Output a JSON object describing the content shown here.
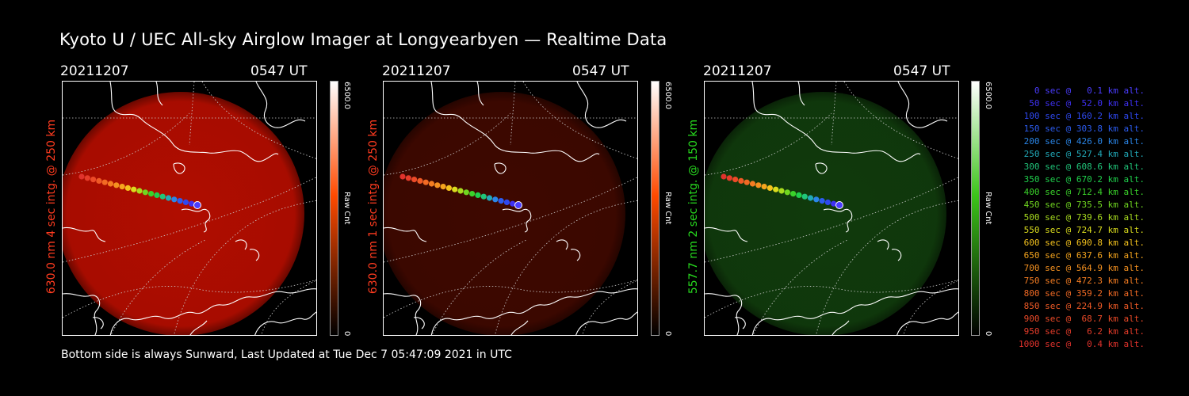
{
  "title": "Kyoto U / UEC All-sky Airglow Imager at Longyearbyen — Realtime Data",
  "footer": "Bottom side is always Sunward, Last Updated at Tue Dec  7 05:47:09 2021 in UTC",
  "panels": [
    {
      "date": "20211207",
      "time": "0547 UT",
      "ylabel": "630.0 nm 4 sec intg. @ 250 km",
      "label_color": "#ff3b1f",
      "cbar_max": "6500.0",
      "cbar_min": "0",
      "cbar_unit": "Raw Cnt",
      "glow_color": "#b00d00",
      "cbar_color": "#ff4a00"
    },
    {
      "date": "20211207",
      "time": "0547 UT",
      "ylabel": "630.0 nm 1 sec intg. @ 250 km",
      "label_color": "#ff3b1f",
      "cbar_max": "6500.0",
      "cbar_min": "0",
      "cbar_unit": "Raw Cnt",
      "glow_color": "#3e0800",
      "cbar_color": "#ff4a00"
    },
    {
      "date": "20211207",
      "time": "0547 UT",
      "ylabel": "557.7 nm 2 sec intg. @ 150 km",
      "label_color": "#27d81e",
      "cbar_max": "6500.0",
      "cbar_min": "0",
      "cbar_unit": "Raw Cnt",
      "glow_color": "#103a0c",
      "cbar_color": "#3cc41a"
    }
  ],
  "legend": [
    {
      "text": "   0 sec @   0.1 km alt.",
      "color": "#4a3cff"
    },
    {
      "text": "  50 sec @  52.0 km alt.",
      "color": "#3e30f2"
    },
    {
      "text": " 100 sec @ 160.2 km alt.",
      "color": "#2e48f0"
    },
    {
      "text": " 150 sec @ 303.8 km alt.",
      "color": "#2c5cf0"
    },
    {
      "text": " 200 sec @ 426.0 km alt.",
      "color": "#2a86e8"
    },
    {
      "text": " 250 sec @ 527.4 km alt.",
      "color": "#21a9b8"
    },
    {
      "text": " 300 sec @ 608.6 km alt.",
      "color": "#20c57a"
    },
    {
      "text": " 350 sec @ 670.2 km alt.",
      "color": "#1fd04c"
    },
    {
      "text": " 400 sec @ 712.4 km alt.",
      "color": "#3ad22a"
    },
    {
      "text": " 450 sec @ 735.5 km alt.",
      "color": "#70d620"
    },
    {
      "text": " 500 sec @ 739.6 km alt.",
      "color": "#a8dc1f"
    },
    {
      "text": " 550 sec @ 724.7 km alt.",
      "color": "#dadc1d"
    },
    {
      "text": " 600 sec @ 690.8 km alt.",
      "color": "#f4c21d"
    },
    {
      "text": " 650 sec @ 637.6 km alt.",
      "color": "#f5a51e"
    },
    {
      "text": " 700 sec @ 564.9 km alt.",
      "color": "#f59120"
    },
    {
      "text": " 750 sec @ 472.3 km alt.",
      "color": "#f57d22"
    },
    {
      "text": " 800 sec @ 359.2 km alt.",
      "color": "#f26a24"
    },
    {
      "text": " 850 sec @ 224.9 km alt.",
      "color": "#ef5a26"
    },
    {
      "text": " 900 sec @  68.7 km alt.",
      "color": "#ec4a28"
    },
    {
      "text": " 950 sec @   6.2 km alt.",
      "color": "#e63c2a"
    },
    {
      "text": "1000 sec @   0.4 km alt.",
      "color": "#e0322c"
    }
  ]
}
